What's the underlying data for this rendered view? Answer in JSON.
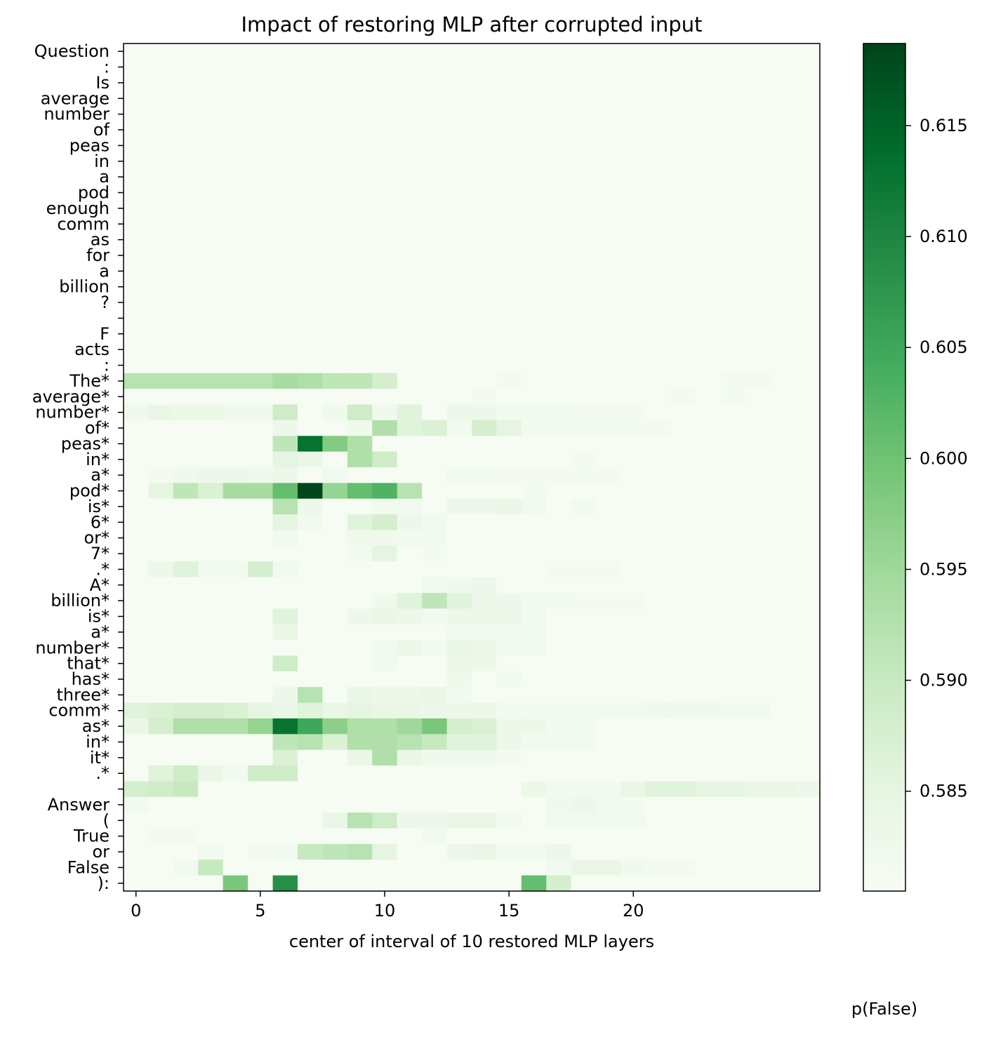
{
  "chart_data": {
    "type": "heatmap",
    "title": "Impact of restoring MLP after corrupted input",
    "xlabel": "center of interval of 10 restored MLP layers",
    "colorbar_label": "p(False)",
    "colormap": "Greens",
    "x_ticks": [
      0,
      5,
      10,
      15,
      20
    ],
    "colorbar_ticks": [
      "0.585",
      "0.590",
      "0.595",
      "0.600",
      "0.605",
      "0.610",
      "0.615"
    ],
    "vmin": 0.5805,
    "vmax": 0.6187,
    "baseline": 0.5808,
    "tokens": [
      "Question",
      ":",
      "Is",
      "average",
      "number",
      "of",
      "peas",
      "in",
      "a",
      "pod",
      "enough",
      "comm",
      "as",
      "for",
      "a",
      "billion",
      "?",
      "",
      "F",
      "acts",
      ":",
      "The*",
      "average*",
      "number*",
      "of*",
      "peas*",
      "in*",
      "a*",
      "pod*",
      "is*",
      "6*",
      "or*",
      "7*",
      ".*",
      "A*",
      "billion*",
      "is*",
      "a*",
      "number*",
      "that*",
      "has*",
      "three*",
      "comm*",
      "as*",
      "in*",
      "it*",
      ".*",
      "",
      "Answer",
      "(",
      "True",
      "or",
      "False",
      "):"
    ],
    "num_layers": 28,
    "highlights": [
      {
        "row": 21,
        "cells": {
          "0": 0.592,
          "1": 0.592,
          "2": 0.592,
          "3": 0.592,
          "4": 0.592,
          "5": 0.592,
          "6": 0.594,
          "7": 0.593,
          "8": 0.591,
          "9": 0.591,
          "10": 0.588,
          "15": 0.5815,
          "24": 0.5815,
          "25": 0.5815
        }
      },
      {
        "row": 22,
        "cells": {
          "14": 0.5815,
          "22": 0.5815,
          "24": 0.5815
        }
      },
      {
        "row": 23,
        "cells": {
          "0": 0.5825,
          "1": 0.584,
          "2": 0.5835,
          "3": 0.5835,
          "4": 0.5825,
          "5": 0.5825,
          "6": 0.589,
          "8": 0.5825,
          "9": 0.589,
          "10": 0.5825,
          "11": 0.586,
          "13": 0.583,
          "14": 0.583,
          "15": 0.582,
          "16": 0.582,
          "17": 0.582,
          "18": 0.5815,
          "19": 0.5815,
          "20": 0.5815
        }
      },
      {
        "row": 24,
        "cells": {
          "6": 0.583,
          "9": 0.5825,
          "10": 0.593,
          "11": 0.586,
          "12": 0.587,
          "13": 0.582,
          "14": 0.588,
          "15": 0.585,
          "16": 0.582,
          "17": 0.582,
          "18": 0.5815,
          "19": 0.5815,
          "20": 0.5815,
          "21": 0.5815
        }
      },
      {
        "row": 25,
        "cells": {
          "6": 0.591,
          "7": 0.613,
          "8": 0.598,
          "9": 0.593
        }
      },
      {
        "row": 26,
        "cells": {
          "6": 0.585,
          "7": 0.584,
          "9": 0.593,
          "10": 0.589,
          "18": 0.5815
        }
      },
      {
        "row": 27,
        "cells": {
          "1": 0.5815,
          "2": 0.5825,
          "3": 0.583,
          "4": 0.583,
          "5": 0.5825,
          "6": 0.583,
          "8": 0.582,
          "13": 0.582,
          "14": 0.582,
          "15": 0.5815,
          "16": 0.5815,
          "17": 0.5815,
          "18": 0.5815,
          "19": 0.5815
        }
      },
      {
        "row": 28,
        "cells": {
          "1": 0.585,
          "2": 0.591,
          "3": 0.587,
          "4": 0.594,
          "5": 0.594,
          "6": 0.601,
          "7": 0.6185,
          "8": 0.596,
          "9": 0.601,
          "10": 0.603,
          "11": 0.592,
          "16": 0.5815
        }
      },
      {
        "row": 29,
        "cells": {
          "6": 0.592,
          "7": 0.583,
          "10": 0.582,
          "11": 0.582,
          "13": 0.583,
          "14": 0.583,
          "15": 0.584,
          "16": 0.582,
          "18": 0.582
        }
      },
      {
        "row": 30,
        "cells": {
          "6": 0.585,
          "7": 0.582,
          "9": 0.586,
          "10": 0.588,
          "11": 0.583,
          "12": 0.582
        }
      },
      {
        "row": 31,
        "cells": {
          "6": 0.582,
          "9": 0.5825,
          "10": 0.5825,
          "11": 0.582,
          "12": 0.582
        }
      },
      {
        "row": 32,
        "cells": {
          "9": 0.582,
          "10": 0.585,
          "12": 0.5815
        }
      },
      {
        "row": 33,
        "cells": {
          "1": 0.583,
          "2": 0.586,
          "3": 0.582,
          "4": 0.582,
          "5": 0.588,
          "6": 0.582,
          "17": 0.5815,
          "18": 0.5815,
          "19": 0.5815
        }
      },
      {
        "row": 34,
        "cells": {
          "12": 0.582,
          "13": 0.5825,
          "14": 0.583
        }
      },
      {
        "row": 35,
        "cells": {
          "10": 0.5825,
          "11": 0.586,
          "12": 0.591,
          "13": 0.586,
          "14": 0.583,
          "15": 0.583,
          "16": 0.582,
          "17": 0.582,
          "18": 0.5815,
          "19": 0.5815,
          "20": 0.5815
        }
      },
      {
        "row": 36,
        "cells": {
          "6": 0.586,
          "9": 0.583,
          "10": 0.584,
          "11": 0.583,
          "12": 0.582,
          "13": 0.583,
          "14": 0.583,
          "15": 0.583,
          "16": 0.582
        }
      },
      {
        "row": 37,
        "cells": {
          "6": 0.584,
          "13": 0.582,
          "14": 0.582,
          "15": 0.5815,
          "16": 0.582
        }
      },
      {
        "row": 38,
        "cells": {
          "10": 0.582,
          "11": 0.583,
          "12": 0.582,
          "13": 0.584,
          "14": 0.583,
          "15": 0.582,
          "16": 0.582
        }
      },
      {
        "row": 39,
        "cells": {
          "6": 0.589,
          "10": 0.582,
          "13": 0.583,
          "14": 0.583
        }
      },
      {
        "row": 40,
        "cells": {
          "13": 0.5825,
          "15": 0.582
        }
      },
      {
        "row": 41,
        "cells": {
          "6": 0.583,
          "7": 0.592,
          "9": 0.584,
          "10": 0.583,
          "11": 0.583,
          "12": 0.584,
          "13": 0.582
        }
      },
      {
        "row": 42,
        "cells": {
          "0": 0.586,
          "1": 0.587,
          "2": 0.588,
          "3": 0.588,
          "4": 0.587,
          "5": 0.585,
          "6": 0.584,
          "7": 0.586,
          "8": 0.584,
          "9": 0.585,
          "10": 0.584,
          "11": 0.584,
          "12": 0.583,
          "13": 0.583,
          "14": 0.583,
          "15": 0.582,
          "16": 0.582,
          "17": 0.582,
          "18": 0.582,
          "19": 0.582,
          "20": 0.582,
          "21": 0.5825,
          "22": 0.5825,
          "23": 0.5825,
          "24": 0.582,
          "25": 0.582
        }
      },
      {
        "row": 43,
        "cells": {
          "0": 0.584,
          "1": 0.588,
          "2": 0.593,
          "3": 0.593,
          "4": 0.593,
          "5": 0.596,
          "6": 0.613,
          "7": 0.605,
          "8": 0.597,
          "9": 0.593,
          "10": 0.593,
          "11": 0.595,
          "12": 0.599,
          "13": 0.588,
          "14": 0.587,
          "15": 0.583,
          "16": 0.583,
          "17": 0.582,
          "18": 0.582
        }
      },
      {
        "row": 44,
        "cells": {
          "6": 0.591,
          "7": 0.592,
          "8": 0.587,
          "9": 0.593,
          "10": 0.593,
          "11": 0.592,
          "12": 0.59,
          "13": 0.586,
          "14": 0.586,
          "15": 0.583,
          "16": 0.582,
          "17": 0.582,
          "18": 0.582
        }
      },
      {
        "row": 45,
        "cells": {
          "6": 0.587,
          "9": 0.584,
          "10": 0.593,
          "11": 0.584,
          "12": 0.5825,
          "13": 0.5825,
          "14": 0.5825,
          "15": 0.5815
        }
      },
      {
        "row": 46,
        "cells": {
          "1": 0.586,
          "2": 0.589,
          "3": 0.584,
          "4": 0.582,
          "5": 0.589,
          "6": 0.589
        }
      },
      {
        "row": 47,
        "cells": {
          "0": 0.588,
          "1": 0.589,
          "2": 0.59,
          "16": 0.5835,
          "17": 0.582,
          "18": 0.582,
          "19": 0.582,
          "20": 0.584,
          "21": 0.586,
          "22": 0.586,
          "23": 0.585,
          "24": 0.585,
          "25": 0.584,
          "26": 0.584,
          "27": 0.583
        }
      },
      {
        "row": 48,
        "cells": {
          "0": 0.582,
          "17": 0.5825,
          "18": 0.583,
          "19": 0.582,
          "20": 0.5815
        }
      },
      {
        "row": 49,
        "cells": {
          "8": 0.584,
          "9": 0.592,
          "10": 0.589,
          "11": 0.583,
          "12": 0.583,
          "13": 0.584,
          "14": 0.584,
          "15": 0.582,
          "17": 0.582,
          "18": 0.582,
          "19": 0.582,
          "20": 0.582
        }
      },
      {
        "row": 50,
        "cells": {
          "1": 0.5815,
          "2": 0.5815,
          "12": 0.582
        }
      },
      {
        "row": 51,
        "cells": {
          "3": 0.582,
          "5": 0.5815,
          "6": 0.582,
          "7": 0.59,
          "8": 0.591,
          "9": 0.592,
          "10": 0.585,
          "13": 0.583,
          "14": 0.584,
          "15": 0.582,
          "16": 0.582,
          "17": 0.583
        }
      },
      {
        "row": 52,
        "cells": {
          "2": 0.582,
          "3": 0.59,
          "17": 0.582,
          "18": 0.584,
          "19": 0.584,
          "20": 0.5825,
          "21": 0.5815,
          "22": 0.5815
        }
      },
      {
        "row": 53,
        "cells": {
          "4": 0.599,
          "6": 0.6085,
          "16": 0.601,
          "17": 0.588
        }
      }
    ]
  }
}
